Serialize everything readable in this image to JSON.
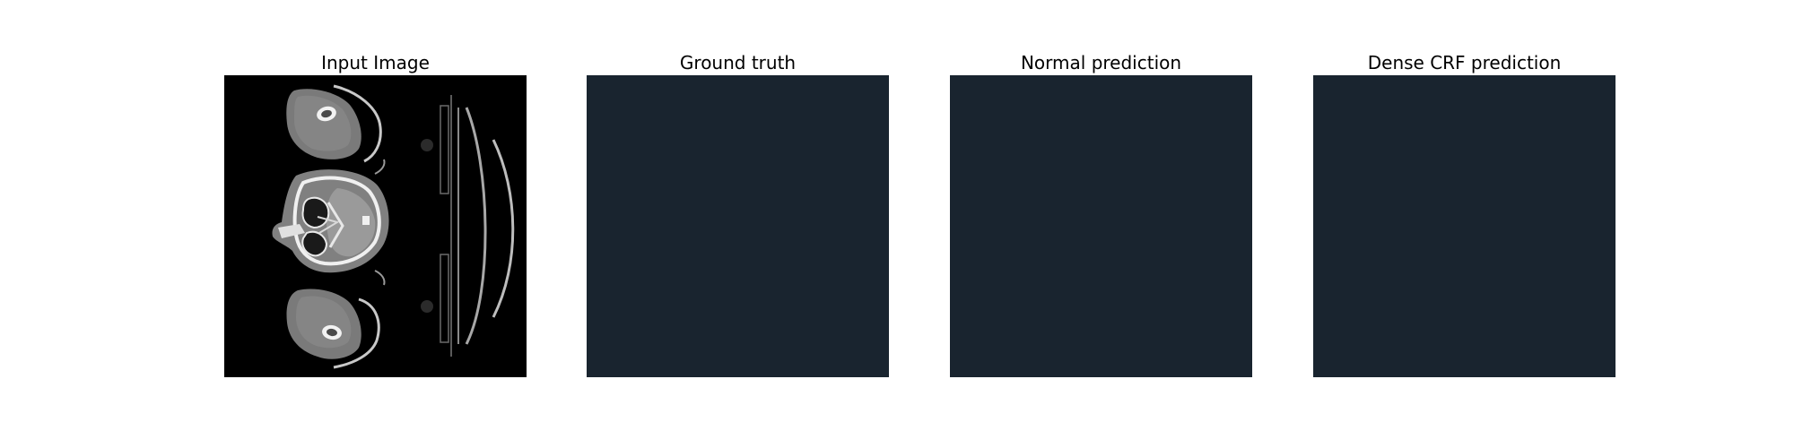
{
  "figure": {
    "panels": [
      {
        "title": "Input Image",
        "content": "ct-scan-slice",
        "fill_color": "#000000"
      },
      {
        "title": "Ground truth",
        "content": "empty-mask",
        "fill_color": "#19242f"
      },
      {
        "title": "Normal prediction",
        "content": "empty-mask",
        "fill_color": "#19242f"
      },
      {
        "title": "Dense CRF prediction",
        "content": "empty-mask",
        "fill_color": "#19242f"
      }
    ]
  }
}
